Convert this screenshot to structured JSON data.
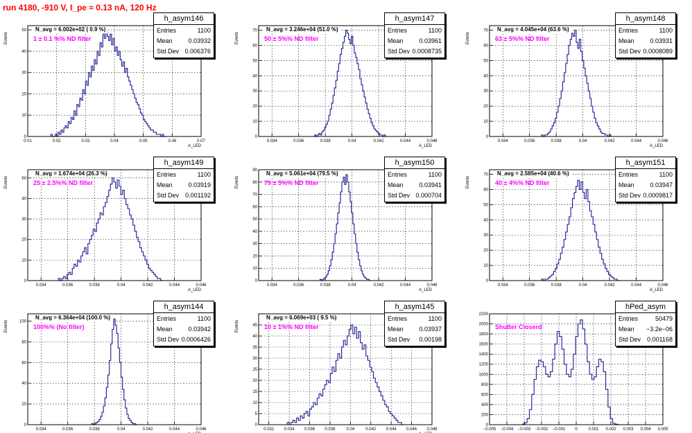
{
  "header": {
    "title": "run 4180,  -910 V, I_pe ≈ 0.13 nA, 120 Hz"
  },
  "stat_labels": {
    "entries": "Entries",
    "mean": "Mean",
    "std": "Std Dev"
  },
  "colors": {
    "title": "#ff0000",
    "annotation": "#ff00ff",
    "histogram": "#2a2a9a"
  },
  "chart_data": [
    {
      "type": "histogram",
      "name": "h_asym146",
      "ylabel": "Events",
      "xlabel": "A_LED",
      "navg": "N_avg = 6.002e+02 ( 0.9 %)",
      "filter": "1 ± 0.1 %% ND filter",
      "entries": "1100",
      "mean": "0.03932",
      "std_dev": "0.006376",
      "xlim": [
        0.01,
        0.07
      ],
      "ylim": [
        0,
        52
      ],
      "xticks": [
        0.01,
        0.02,
        0.03,
        0.04,
        0.05,
        0.06,
        0.07
      ],
      "xtick_labels": [
        "0.01",
        "0.02",
        "0.03",
        "0.04",
        "0.05",
        "0.06",
        "0.07"
      ],
      "yticks": [
        0,
        10,
        20,
        30,
        40,
        50
      ],
      "ytick_labels": [
        "0",
        "10",
        "20",
        "30",
        "40",
        "50"
      ],
      "values": [
        1,
        0,
        0,
        1,
        0,
        2,
        1,
        3,
        2,
        4,
        5,
        4,
        7,
        6,
        9,
        8,
        12,
        10,
        15,
        14,
        18,
        17,
        22,
        20,
        26,
        24,
        30,
        28,
        33,
        31,
        36,
        34,
        40,
        38,
        44,
        42,
        48,
        46,
        50,
        47,
        45,
        48,
        43,
        46,
        40,
        42,
        38,
        40,
        36,
        33,
        35,
        30,
        32,
        28,
        26,
        24,
        22,
        20,
        18,
        16,
        15,
        13,
        11,
        10,
        8,
        7,
        6,
        5,
        4,
        3,
        3,
        2,
        2,
        1,
        1,
        1,
        0,
        1,
        0,
        0
      ],
      "hist_range": [
        0.018,
        0.058
      ]
    },
    {
      "type": "histogram",
      "name": "h_asym147",
      "ylabel": "Events",
      "xlabel": "A_LED",
      "navg": "N_avg = 3.246e+04 (51.0 %)",
      "filter": "50 ± 5%% ND filter",
      "entries": "1100",
      "mean": "0.03961",
      "std_dev": "0.0008735",
      "xlim": [
        0.033,
        0.046
      ],
      "ylim": [
        0,
        73
      ],
      "xticks": [
        0.034,
        0.036,
        0.038,
        0.04,
        0.042,
        0.044,
        0.046
      ],
      "xtick_labels": [
        "0.034",
        "0.036",
        "0.038",
        "0.04",
        "0.042",
        "0.044",
        "0.046"
      ],
      "yticks": [
        0,
        10,
        20,
        30,
        40,
        50,
        60,
        70
      ],
      "ytick_labels": [
        "0",
        "10",
        "20",
        "30",
        "40",
        "50",
        "60",
        "70"
      ],
      "values": [
        1,
        0,
        1,
        2,
        1,
        3,
        4,
        6,
        8,
        10,
        14,
        18,
        22,
        27,
        32,
        37,
        43,
        48,
        54,
        58,
        62,
        66,
        70,
        68,
        64,
        61,
        66,
        60,
        55,
        52,
        48,
        44,
        38,
        34,
        30,
        26,
        22,
        18,
        15,
        12,
        9,
        7,
        5,
        4,
        3,
        2,
        1,
        1,
        0,
        1
      ],
      "hist_range": [
        0.0372,
        0.0425
      ]
    },
    {
      "type": "histogram",
      "name": "h_asym148",
      "ylabel": "Events",
      "xlabel": "A_LED",
      "navg": "N_avg = 4.045e+04 (63.6 %)",
      "filter": "63 ± 5%% ND filter",
      "entries": "1100",
      "mean": "0.03931",
      "std_dev": "0.0008089",
      "xlim": [
        0.033,
        0.046
      ],
      "ylim": [
        0,
        73
      ],
      "xticks": [
        0.034,
        0.036,
        0.038,
        0.04,
        0.042,
        0.044,
        0.046
      ],
      "xtick_labels": [
        "0.034",
        "0.036",
        "0.038",
        "0.04",
        "0.042",
        "0.044",
        "0.046"
      ],
      "yticks": [
        0,
        10,
        20,
        30,
        40,
        50,
        60,
        70
      ],
      "ytick_labels": [
        "0",
        "10",
        "20",
        "30",
        "40",
        "50",
        "60",
        "70"
      ],
      "values": [
        1,
        0,
        1,
        1,
        2,
        3,
        5,
        7,
        9,
        12,
        16,
        20,
        25,
        30,
        36,
        42,
        48,
        54,
        60,
        64,
        68,
        66,
        70,
        62,
        58,
        64,
        56,
        50,
        45,
        40,
        35,
        30,
        25,
        20,
        16,
        12,
        9,
        7,
        5,
        3,
        2,
        2,
        1,
        1,
        0,
        1
      ],
      "hist_range": [
        0.0369,
        0.0421
      ]
    },
    {
      "type": "histogram",
      "name": "h_asym149",
      "ylabel": "Events",
      "xlabel": "A_LED",
      "navg": "N_avg = 1.674e+04 (26.3 %)",
      "filter": "25 ± 2.5%% ND filter",
      "entries": "1100",
      "mean": "0.03919",
      "std_dev": "0.001192",
      "xlim": [
        0.033,
        0.046
      ],
      "ylim": [
        0,
        54
      ],
      "xticks": [
        0.034,
        0.036,
        0.038,
        0.04,
        0.042,
        0.044,
        0.046
      ],
      "xtick_labels": [
        "0.034",
        "0.036",
        "0.038",
        "0.04",
        "0.042",
        "0.044",
        "0.046"
      ],
      "yticks": [
        0,
        10,
        20,
        30,
        40,
        50
      ],
      "ytick_labels": [
        "0",
        "10",
        "20",
        "30",
        "40",
        "50"
      ],
      "values": [
        1,
        0,
        1,
        2,
        1,
        3,
        4,
        3,
        6,
        8,
        7,
        10,
        9,
        12,
        14,
        16,
        13,
        18,
        20,
        22,
        25,
        24,
        28,
        30,
        33,
        32,
        36,
        38,
        41,
        44,
        47,
        50,
        48,
        45,
        49,
        46,
        42,
        44,
        40,
        37,
        35,
        32,
        30,
        27,
        24,
        21,
        19,
        16,
        14,
        12,
        10,
        8,
        6,
        5,
        4,
        3,
        2,
        1,
        1,
        0
      ],
      "hist_range": [
        0.0353,
        0.0431
      ]
    },
    {
      "type": "histogram",
      "name": "h_asym150",
      "ylabel": "Events",
      "xlabel": "A_LED",
      "navg": "N_avg = 5.061e+04 (79.5 %)",
      "filter": "79 ± 5%% ND filter",
      "entries": "1100",
      "mean": "0.03941",
      "std_dev": "0.000704",
      "xlim": [
        0.033,
        0.046
      ],
      "ylim": [
        0,
        90
      ],
      "xticks": [
        0.034,
        0.036,
        0.038,
        0.04,
        0.042,
        0.044,
        0.046
      ],
      "xtick_labels": [
        "0.034",
        "0.036",
        "0.038",
        "0.04",
        "0.042",
        "0.044",
        "0.046"
      ],
      "yticks": [
        0,
        10,
        20,
        30,
        40,
        50,
        60,
        70,
        80,
        90
      ],
      "ytick_labels": [
        "0",
        "10",
        "20",
        "30",
        "40",
        "50",
        "60",
        "70",
        "80",
        "90"
      ],
      "values": [
        1,
        0,
        1,
        2,
        3,
        5,
        8,
        12,
        17,
        23,
        30,
        38,
        46,
        55,
        63,
        72,
        80,
        84,
        78,
        86,
        80,
        72,
        64,
        55,
        46,
        38,
        30,
        23,
        17,
        12,
        8,
        5,
        3,
        2,
        1,
        1,
        0
      ],
      "hist_range": [
        0.0376,
        0.0414
      ]
    },
    {
      "type": "histogram",
      "name": "h_asym151",
      "ylabel": "Events",
      "xlabel": "A_LED",
      "navg": "N_avg = 2.585e+04 (40.6 %)",
      "filter": "40 ± 4%% ND filter",
      "entries": "1100",
      "mean": "0.03947",
      "std_dev": "0.0009817",
      "xlim": [
        0.033,
        0.046
      ],
      "ylim": [
        0,
        73
      ],
      "xticks": [
        0.034,
        0.036,
        0.038,
        0.04,
        0.042,
        0.044,
        0.046
      ],
      "xtick_labels": [
        "0.034",
        "0.036",
        "0.038",
        "0.04",
        "0.042",
        "0.044",
        "0.046"
      ],
      "yticks": [
        0,
        10,
        20,
        30,
        40,
        50,
        60,
        70
      ],
      "ytick_labels": [
        "0",
        "10",
        "20",
        "30",
        "40",
        "50",
        "60",
        "70"
      ],
      "values": [
        1,
        0,
        1,
        1,
        2,
        3,
        4,
        6,
        8,
        11,
        14,
        18,
        22,
        27,
        32,
        37,
        42,
        48,
        54,
        58,
        62,
        66,
        60,
        65,
        58,
        54,
        60,
        52,
        46,
        42,
        37,
        32,
        27,
        22,
        18,
        14,
        11,
        8,
        6,
        4,
        3,
        2,
        1,
        1,
        0
      ],
      "hist_range": [
        0.0369,
        0.0427
      ]
    },
    {
      "type": "histogram",
      "name": "h_asym144",
      "ylabel": "Events",
      "xlabel": "A_LED",
      "navg": "N_avg = 6.364e+04 (100.0 %)",
      "filter": "100%% (No filter)",
      "entries": "1100",
      "mean": "0.03942",
      "std_dev": "0.0006426",
      "xlim": [
        0.033,
        0.046
      ],
      "ylim": [
        0,
        107
      ],
      "xticks": [
        0.034,
        0.036,
        0.038,
        0.04,
        0.042,
        0.044,
        0.046
      ],
      "xtick_labels": [
        "0.034",
        "0.036",
        "0.038",
        "0.04",
        "0.042",
        "0.044",
        "0.046"
      ],
      "yticks": [
        0,
        20,
        40,
        60,
        80,
        100
      ],
      "ytick_labels": [
        "0",
        "20",
        "40",
        "60",
        "80",
        "100"
      ],
      "values": [
        1,
        0,
        1,
        2,
        3,
        5,
        8,
        12,
        18,
        26,
        36,
        48,
        62,
        78,
        92,
        102,
        96,
        88,
        74,
        60,
        46,
        34,
        24,
        16,
        10,
        6,
        4,
        2,
        1,
        1,
        0
      ],
      "hist_range": [
        0.0378,
        0.0412
      ]
    },
    {
      "type": "histogram",
      "name": "h_asym145",
      "ylabel": "Events",
      "xlabel": "A_LED",
      "navg": "N_avg = 6.069e+03 ( 9.5 %)",
      "filter": "10 ± 1%% ND filter",
      "entries": "1100",
      "mean": "0.03937",
      "std_dev": "0.00198",
      "xlim": [
        0.031,
        0.048
      ],
      "ylim": [
        0,
        50
      ],
      "xticks": [
        0.032,
        0.034,
        0.036,
        0.038,
        0.04,
        0.042,
        0.044,
        0.046,
        0.048
      ],
      "xtick_labels": [
        "0.032",
        "0.034",
        "0.036",
        "0.038",
        "0.04",
        "0.042",
        "0.044",
        "0.046",
        "0.048"
      ],
      "yticks": [
        0,
        5,
        10,
        15,
        20,
        25,
        30,
        35,
        40,
        45
      ],
      "ytick_labels": [
        "0",
        "5",
        "10",
        "15",
        "20",
        "25",
        "30",
        "35",
        "40",
        "45"
      ],
      "values": [
        1,
        0,
        1,
        2,
        1,
        3,
        2,
        4,
        3,
        5,
        6,
        4,
        7,
        8,
        10,
        9,
        12,
        14,
        13,
        16,
        18,
        20,
        19,
        23,
        26,
        24,
        29,
        32,
        30,
        35,
        38,
        36,
        40,
        43,
        45,
        41,
        44,
        39,
        42,
        37,
        34,
        36,
        31,
        29,
        26,
        24,
        21,
        19,
        17,
        15,
        13,
        11,
        9,
        8,
        6,
        5,
        4,
        3,
        2,
        1,
        1,
        0
      ],
      "hist_range": [
        0.0338,
        0.0452
      ]
    },
    {
      "type": "histogram",
      "name": "hPed_asym",
      "ylabel": "",
      "xlabel": "",
      "navg": "",
      "filter": "Shutter Closerd",
      "entries": "50479",
      "mean": "−3.2e−06",
      "std_dev": "0.001168",
      "xlim": [
        -0.005,
        0.005
      ],
      "ylim": [
        0,
        2200
      ],
      "xticks": [
        -0.005,
        -0.004,
        -0.003,
        -0.002,
        -0.001,
        0,
        0.001,
        0.002,
        0.003,
        0.004,
        0.005
      ],
      "xtick_labels": [
        "−0.005",
        "−0.004",
        "−0.003",
        "−0.002",
        "−0.001",
        "0",
        "0.001",
        "0.002",
        "0.003",
        "0.004",
        "0.005"
      ],
      "yticks": [
        0,
        200,
        400,
        600,
        800,
        1000,
        1200,
        1400,
        1600,
        1800,
        2000,
        2200
      ],
      "ytick_labels": [
        "0",
        "200",
        "400",
        "600",
        "800",
        "1000",
        "1200",
        "1400",
        "1600",
        "1800",
        "2000",
        "2200"
      ],
      "values": [
        10,
        40,
        120,
        300,
        600,
        900,
        1150,
        1280,
        1250,
        1150,
        1000,
        950,
        1050,
        1300,
        1600,
        1850,
        1750,
        1500,
        1200,
        1000,
        950,
        1100,
        1400,
        1750,
        2000,
        2080,
        1900,
        1600,
        1250,
        1000,
        900,
        950,
        1150,
        1300,
        1250,
        1050,
        700,
        350,
        120,
        30,
        10,
        0
      ],
      "hist_range": [
        -0.0031,
        0.0025
      ]
    }
  ]
}
